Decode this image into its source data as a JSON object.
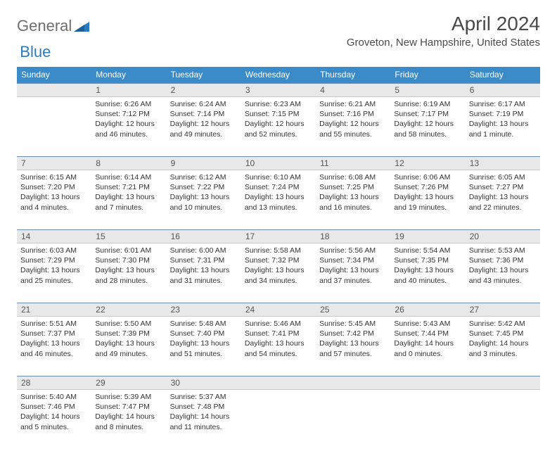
{
  "brand": {
    "word1": "General",
    "word2": "Blue"
  },
  "title": "April 2024",
  "location": "Groveton, New Hampshire, United States",
  "colors": {
    "header_bar": "#3b8bc9",
    "band_bg": "#e8e8e8",
    "band_border_top": "#6a8db0",
    "logo_gray": "#6e6e6e",
    "logo_blue": "#2b7bbf"
  },
  "days_of_week": [
    "Sunday",
    "Monday",
    "Tuesday",
    "Wednesday",
    "Thursday",
    "Friday",
    "Saturday"
  ],
  "weeks": [
    {
      "nums": [
        "",
        "1",
        "2",
        "3",
        "4",
        "5",
        "6"
      ],
      "cells": [
        null,
        {
          "sr": "Sunrise: 6:26 AM",
          "ss": "Sunset: 7:12 PM",
          "d1": "Daylight: 12 hours",
          "d2": "and 46 minutes."
        },
        {
          "sr": "Sunrise: 6:24 AM",
          "ss": "Sunset: 7:14 PM",
          "d1": "Daylight: 12 hours",
          "d2": "and 49 minutes."
        },
        {
          "sr": "Sunrise: 6:23 AM",
          "ss": "Sunset: 7:15 PM",
          "d1": "Daylight: 12 hours",
          "d2": "and 52 minutes."
        },
        {
          "sr": "Sunrise: 6:21 AM",
          "ss": "Sunset: 7:16 PM",
          "d1": "Daylight: 12 hours",
          "d2": "and 55 minutes."
        },
        {
          "sr": "Sunrise: 6:19 AM",
          "ss": "Sunset: 7:17 PM",
          "d1": "Daylight: 12 hours",
          "d2": "and 58 minutes."
        },
        {
          "sr": "Sunrise: 6:17 AM",
          "ss": "Sunset: 7:19 PM",
          "d1": "Daylight: 13 hours",
          "d2": "and 1 minute."
        }
      ]
    },
    {
      "nums": [
        "7",
        "8",
        "9",
        "10",
        "11",
        "12",
        "13"
      ],
      "cells": [
        {
          "sr": "Sunrise: 6:15 AM",
          "ss": "Sunset: 7:20 PM",
          "d1": "Daylight: 13 hours",
          "d2": "and 4 minutes."
        },
        {
          "sr": "Sunrise: 6:14 AM",
          "ss": "Sunset: 7:21 PM",
          "d1": "Daylight: 13 hours",
          "d2": "and 7 minutes."
        },
        {
          "sr": "Sunrise: 6:12 AM",
          "ss": "Sunset: 7:22 PM",
          "d1": "Daylight: 13 hours",
          "d2": "and 10 minutes."
        },
        {
          "sr": "Sunrise: 6:10 AM",
          "ss": "Sunset: 7:24 PM",
          "d1": "Daylight: 13 hours",
          "d2": "and 13 minutes."
        },
        {
          "sr": "Sunrise: 6:08 AM",
          "ss": "Sunset: 7:25 PM",
          "d1": "Daylight: 13 hours",
          "d2": "and 16 minutes."
        },
        {
          "sr": "Sunrise: 6:06 AM",
          "ss": "Sunset: 7:26 PM",
          "d1": "Daylight: 13 hours",
          "d2": "and 19 minutes."
        },
        {
          "sr": "Sunrise: 6:05 AM",
          "ss": "Sunset: 7:27 PM",
          "d1": "Daylight: 13 hours",
          "d2": "and 22 minutes."
        }
      ]
    },
    {
      "nums": [
        "14",
        "15",
        "16",
        "17",
        "18",
        "19",
        "20"
      ],
      "cells": [
        {
          "sr": "Sunrise: 6:03 AM",
          "ss": "Sunset: 7:29 PM",
          "d1": "Daylight: 13 hours",
          "d2": "and 25 minutes."
        },
        {
          "sr": "Sunrise: 6:01 AM",
          "ss": "Sunset: 7:30 PM",
          "d1": "Daylight: 13 hours",
          "d2": "and 28 minutes."
        },
        {
          "sr": "Sunrise: 6:00 AM",
          "ss": "Sunset: 7:31 PM",
          "d1": "Daylight: 13 hours",
          "d2": "and 31 minutes."
        },
        {
          "sr": "Sunrise: 5:58 AM",
          "ss": "Sunset: 7:32 PM",
          "d1": "Daylight: 13 hours",
          "d2": "and 34 minutes."
        },
        {
          "sr": "Sunrise: 5:56 AM",
          "ss": "Sunset: 7:34 PM",
          "d1": "Daylight: 13 hours",
          "d2": "and 37 minutes."
        },
        {
          "sr": "Sunrise: 5:54 AM",
          "ss": "Sunset: 7:35 PM",
          "d1": "Daylight: 13 hours",
          "d2": "and 40 minutes."
        },
        {
          "sr": "Sunrise: 5:53 AM",
          "ss": "Sunset: 7:36 PM",
          "d1": "Daylight: 13 hours",
          "d2": "and 43 minutes."
        }
      ]
    },
    {
      "nums": [
        "21",
        "22",
        "23",
        "24",
        "25",
        "26",
        "27"
      ],
      "cells": [
        {
          "sr": "Sunrise: 5:51 AM",
          "ss": "Sunset: 7:37 PM",
          "d1": "Daylight: 13 hours",
          "d2": "and 46 minutes."
        },
        {
          "sr": "Sunrise: 5:50 AM",
          "ss": "Sunset: 7:39 PM",
          "d1": "Daylight: 13 hours",
          "d2": "and 49 minutes."
        },
        {
          "sr": "Sunrise: 5:48 AM",
          "ss": "Sunset: 7:40 PM",
          "d1": "Daylight: 13 hours",
          "d2": "and 51 minutes."
        },
        {
          "sr": "Sunrise: 5:46 AM",
          "ss": "Sunset: 7:41 PM",
          "d1": "Daylight: 13 hours",
          "d2": "and 54 minutes."
        },
        {
          "sr": "Sunrise: 5:45 AM",
          "ss": "Sunset: 7:42 PM",
          "d1": "Daylight: 13 hours",
          "d2": "and 57 minutes."
        },
        {
          "sr": "Sunrise: 5:43 AM",
          "ss": "Sunset: 7:44 PM",
          "d1": "Daylight: 14 hours",
          "d2": "and 0 minutes."
        },
        {
          "sr": "Sunrise: 5:42 AM",
          "ss": "Sunset: 7:45 PM",
          "d1": "Daylight: 14 hours",
          "d2": "and 3 minutes."
        }
      ]
    },
    {
      "nums": [
        "28",
        "29",
        "30",
        "",
        "",
        "",
        ""
      ],
      "cells": [
        {
          "sr": "Sunrise: 5:40 AM",
          "ss": "Sunset: 7:46 PM",
          "d1": "Daylight: 14 hours",
          "d2": "and 5 minutes."
        },
        {
          "sr": "Sunrise: 5:39 AM",
          "ss": "Sunset: 7:47 PM",
          "d1": "Daylight: 14 hours",
          "d2": "and 8 minutes."
        },
        {
          "sr": "Sunrise: 5:37 AM",
          "ss": "Sunset: 7:48 PM",
          "d1": "Daylight: 14 hours",
          "d2": "and 11 minutes."
        },
        null,
        null,
        null,
        null
      ]
    }
  ]
}
